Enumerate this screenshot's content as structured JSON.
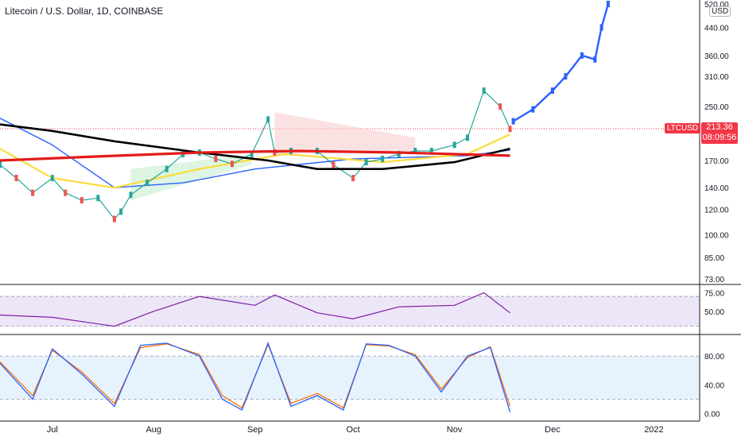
{
  "header": {
    "symbol_title": "Litecoin / U.S. Dollar, 1D, COINBASE",
    "currency_badge": "USD"
  },
  "price_tag": {
    "ticker": "LTCUSD",
    "last_price": "213.36",
    "countdown": "08:09:56"
  },
  "colors": {
    "up_candle": "#26a69a",
    "down_candle": "#ef5350",
    "projection": "#2962ff",
    "ma_red": "#e21b1b",
    "ma_black": "#000000",
    "ma_blue": "#2962ff",
    "ma_yellow": "#fbdb3a",
    "rsi_line": "#7b1fa2",
    "rsi_band": "#e6dcf5",
    "stoch_k": "#2962ff",
    "stoch_d": "#ff6d00",
    "stoch_band": "#e3f2fd"
  },
  "chart_data": [
    {
      "type": "line",
      "title": "Litecoin / U.S. Dollar, 1D, COINBASE",
      "scale": "log",
      "y_ticks": [
        "520.00",
        "440.00",
        "360.00",
        "310.00",
        "250.00",
        "170.00",
        "140.00",
        "120.00",
        "100.00",
        "85.00",
        "73.00"
      ],
      "x_ticks": [
        "Jul",
        "Aug",
        "Sep",
        "Oct",
        "Nov",
        "Dec",
        "2022"
      ],
      "ylim": [
        73,
        520
      ],
      "series": [
        {
          "role": "close",
          "x": [
            "2021-06-15",
            "2021-06-20",
            "2021-06-25",
            "2021-07-01",
            "2021-07-05",
            "2021-07-10",
            "2021-07-15",
            "2021-07-20",
            "2021-07-22",
            "2021-07-25",
            "2021-07-30",
            "2021-08-05",
            "2021-08-10",
            "2021-08-15",
            "2021-08-20",
            "2021-08-25",
            "2021-08-31",
            "2021-09-05",
            "2021-09-07",
            "2021-09-12",
            "2021-09-20",
            "2021-09-25",
            "2021-10-01",
            "2021-10-05",
            "2021-10-10",
            "2021-10-15",
            "2021-10-20",
            "2021-10-25",
            "2021-11-01",
            "2021-11-05",
            "2021-11-10",
            "2021-11-15",
            "2021-11-18"
          ],
          "y": [
            165,
            150,
            135,
            150,
            135,
            128,
            130,
            112,
            118,
            133,
            145,
            160,
            178,
            180,
            172,
            166,
            178,
            228,
            180,
            182,
            182,
            165,
            150,
            168,
            172,
            178,
            182,
            182,
            190,
            200,
            280,
            250,
            213
          ]
        },
        {
          "role": "projection",
          "x": [
            "2021-11-19",
            "2021-11-25",
            "2021-12-01",
            "2021-12-05",
            "2021-12-10",
            "2021-12-14",
            "2021-12-16",
            "2021-12-18"
          ],
          "y": [
            225,
            245,
            280,
            310,
            360,
            350,
            440,
            520
          ]
        },
        {
          "role": "ma_red",
          "x": [
            "2021-06-15",
            "2021-07-15",
            "2021-08-15",
            "2021-09-15",
            "2021-10-15",
            "2021-11-18"
          ],
          "y": [
            170,
            175,
            180,
            182,
            180,
            176
          ]
        },
        {
          "role": "ma_black",
          "x": [
            "2021-06-15",
            "2021-07-01",
            "2021-07-20",
            "2021-08-15",
            "2021-09-05",
            "2021-09-20",
            "2021-10-10",
            "2021-11-01",
            "2021-11-18"
          ],
          "y": [
            220,
            210,
            195,
            180,
            170,
            160,
            160,
            168,
            185
          ]
        },
        {
          "role": "ma_blue",
          "x": [
            "2021-06-15",
            "2021-07-01",
            "2021-07-20",
            "2021-08-10",
            "2021-09-01",
            "2021-10-01",
            "2021-11-05",
            "2021-11-18"
          ],
          "y": [
            230,
            190,
            140,
            145,
            160,
            172,
            176,
            183
          ]
        },
        {
          "role": "ma_yellow",
          "x": [
            "2021-06-15",
            "2021-07-01",
            "2021-07-20",
            "2021-08-15",
            "2021-09-10",
            "2021-10-10",
            "2021-11-05",
            "2021-11-18"
          ],
          "y": [
            185,
            150,
            140,
            160,
            178,
            168,
            178,
            205
          ]
        }
      ]
    },
    {
      "type": "line",
      "y_ticks": [
        "75.00",
        "50.00"
      ],
      "ylim": [
        20,
        85
      ],
      "series": [
        {
          "role": "rsi",
          "x": [
            "2021-06-15",
            "2021-07-01",
            "2021-07-20",
            "2021-08-01",
            "2021-08-15",
            "2021-09-01",
            "2021-09-07",
            "2021-09-20",
            "2021-10-01",
            "2021-10-15",
            "2021-11-01",
            "2021-11-10",
            "2021-11-18"
          ],
          "y": [
            45,
            42,
            30,
            50,
            70,
            58,
            72,
            48,
            40,
            56,
            58,
            75,
            48
          ]
        }
      ]
    },
    {
      "type": "line",
      "y_ticks": [
        "80.00",
        "40.00",
        "0.00"
      ],
      "ylim": [
        -5,
        110
      ],
      "series": [
        {
          "role": "stoch_k",
          "x": [
            "2021-06-15",
            "2021-06-25",
            "2021-07-01",
            "2021-07-10",
            "2021-07-20",
            "2021-07-28",
            "2021-08-05",
            "2021-08-15",
            "2021-08-22",
            "2021-08-28",
            "2021-09-05",
            "2021-09-12",
            "2021-09-20",
            "2021-09-28",
            "2021-10-05",
            "2021-10-12",
            "2021-10-20",
            "2021-10-28",
            "2021-11-05",
            "2021-11-12",
            "2021-11-18"
          ],
          "y": [
            70,
            20,
            90,
            55,
            10,
            95,
            98,
            80,
            20,
            5,
            98,
            10,
            25,
            5,
            97,
            95,
            80,
            30,
            80,
            92,
            2
          ]
        },
        {
          "role": "stoch_d",
          "x": [
            "2021-06-15",
            "2021-06-25",
            "2021-07-01",
            "2021-07-10",
            "2021-07-20",
            "2021-07-28",
            "2021-08-05",
            "2021-08-15",
            "2021-08-22",
            "2021-08-28",
            "2021-09-05",
            "2021-09-12",
            "2021-09-20",
            "2021-09-28",
            "2021-10-05",
            "2021-10-12",
            "2021-10-20",
            "2021-10-28",
            "2021-11-05",
            "2021-11-12",
            "2021-11-18"
          ],
          "y": [
            72,
            25,
            88,
            58,
            14,
            92,
            97,
            82,
            25,
            8,
            96,
            14,
            28,
            8,
            96,
            94,
            82,
            34,
            78,
            93,
            10
          ]
        }
      ]
    }
  ]
}
